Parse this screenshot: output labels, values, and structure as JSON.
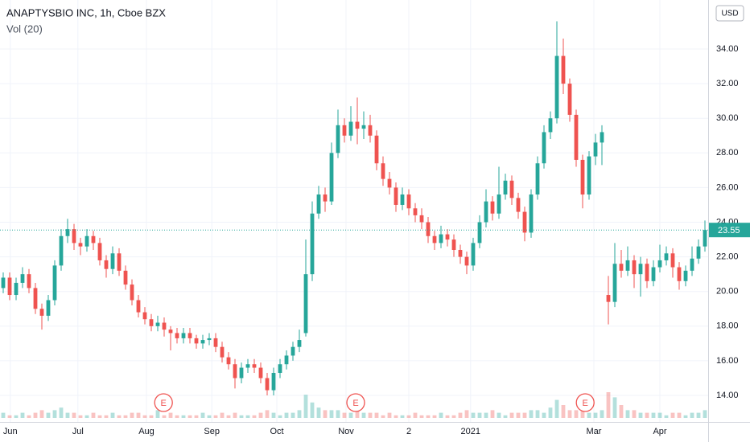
{
  "chart_data": {
    "type": "candlestick",
    "title": "ANAPTYSBIO INC, 1h, Cboe BZX",
    "indicator": "Vol (20)",
    "currency": "USD",
    "up_color": "#26a69a",
    "down_color": "#ef5350",
    "xlim": [
      0,
      110
    ],
    "xticks": [
      {
        "value": 1.6,
        "label": "Jun"
      },
      {
        "value": 12.1,
        "label": "Jul"
      },
      {
        "value": 22.75,
        "label": "Aug"
      },
      {
        "value": 32.9,
        "label": "Sep"
      },
      {
        "value": 43,
        "label": "Oct"
      },
      {
        "value": 53.75,
        "label": "Nov"
      },
      {
        "value": 63.5,
        "label": "2"
      },
      {
        "value": 73.1,
        "label": "2021"
      },
      {
        "value": 92.25,
        "label": "Mar"
      },
      {
        "value": 102.5,
        "label": "Apr"
      }
    ],
    "ylim": [
      12.47,
      36.83
    ],
    "yticks": [
      {
        "value": 14,
        "label": "14.00"
      },
      {
        "value": 16,
        "label": "16.00"
      },
      {
        "value": 18,
        "label": "18.00"
      },
      {
        "value": 20,
        "label": "20.00"
      },
      {
        "value": 22,
        "label": "22.00"
      },
      {
        "value": 24,
        "label": "24.00"
      },
      {
        "value": 26,
        "label": "26.00"
      },
      {
        "value": 28,
        "label": "28.00"
      },
      {
        "value": 30,
        "label": "30.00"
      },
      {
        "value": 32,
        "label": "32.00"
      },
      {
        "value": 34,
        "label": "34.00"
      }
    ],
    "grid": true,
    "last_price": {
      "value": 23.55,
      "label": "23.55"
    },
    "candles": [
      [
        20.2,
        21.1,
        19.9,
        20.8
      ],
      [
        20.8,
        21.1,
        19.5,
        19.8
      ],
      [
        19.8,
        20.8,
        19.5,
        20.5
      ],
      [
        20.5,
        21.4,
        20.2,
        21.0
      ],
      [
        21.0,
        21.3,
        19.9,
        20.2
      ],
      [
        20.2,
        20.5,
        18.7,
        19.0
      ],
      [
        19.0,
        19.3,
        17.8,
        18.6
      ],
      [
        18.6,
        19.8,
        18.3,
        19.5
      ],
      [
        19.5,
        21.8,
        19.2,
        21.5
      ],
      [
        21.5,
        23.6,
        21.2,
        23.2
      ],
      [
        23.2,
        24.2,
        22.8,
        23.6
      ],
      [
        23.6,
        23.9,
        22.4,
        22.8
      ],
      [
        22.8,
        23.1,
        22.1,
        22.6
      ],
      [
        22.6,
        23.6,
        22.3,
        23.2
      ],
      [
        23.2,
        23.5,
        22.4,
        22.8
      ],
      [
        22.8,
        23.1,
        21.5,
        21.8
      ],
      [
        21.8,
        22.1,
        20.8,
        21.3
      ],
      [
        21.3,
        22.6,
        21.0,
        22.2
      ],
      [
        22.2,
        22.5,
        20.9,
        21.2
      ],
      [
        21.2,
        21.5,
        20.1,
        20.4
      ],
      [
        20.4,
        20.7,
        19.2,
        19.5
      ],
      [
        19.5,
        19.8,
        18.5,
        18.8
      ],
      [
        18.8,
        19.1,
        18.1,
        18.4
      ],
      [
        18.4,
        18.7,
        17.7,
        18.0
      ],
      [
        18.0,
        18.6,
        17.7,
        18.2
      ],
      [
        18.2,
        18.5,
        17.4,
        17.8
      ],
      [
        17.8,
        18.0,
        16.6,
        17.6
      ],
      [
        17.6,
        17.9,
        17.0,
        17.3
      ],
      [
        17.3,
        17.9,
        17.0,
        17.6
      ],
      [
        17.6,
        17.9,
        17.0,
        17.3
      ],
      [
        17.3,
        17.5,
        16.7,
        17.0
      ],
      [
        17.0,
        17.5,
        16.7,
        17.2
      ],
      [
        17.2,
        17.6,
        16.9,
        17.3
      ],
      [
        17.3,
        17.6,
        16.5,
        16.8
      ],
      [
        16.8,
        17.1,
        15.9,
        16.2
      ],
      [
        16.2,
        16.5,
        15.5,
        15.8
      ],
      [
        15.8,
        16.1,
        14.4,
        15.0
      ],
      [
        15.0,
        15.9,
        14.7,
        15.6
      ],
      [
        15.6,
        16.1,
        15.3,
        15.8
      ],
      [
        15.8,
        16.1,
        15.3,
        15.6
      ],
      [
        15.6,
        15.9,
        14.7,
        15.0
      ],
      [
        15.0,
        15.3,
        14.0,
        14.3
      ],
      [
        14.3,
        15.6,
        14.0,
        15.3
      ],
      [
        15.3,
        16.1,
        15.0,
        15.8
      ],
      [
        15.8,
        16.6,
        15.5,
        16.3
      ],
      [
        16.3,
        17.1,
        16.0,
        16.8
      ],
      [
        16.8,
        17.8,
        16.5,
        17.2
      ],
      [
        17.6,
        23.0,
        17.4,
        21.0
      ],
      [
        21.0,
        25.2,
        20.6,
        24.5
      ],
      [
        24.5,
        26.1,
        24.2,
        25.6
      ],
      [
        25.6,
        26.0,
        24.6,
        25.2
      ],
      [
        25.2,
        28.6,
        25.0,
        28.0
      ],
      [
        28.0,
        30.5,
        27.7,
        29.6
      ],
      [
        29.6,
        30.0,
        28.6,
        29.0
      ],
      [
        29.0,
        30.7,
        28.7,
        29.8
      ],
      [
        29.8,
        31.2,
        28.5,
        29.4
      ],
      [
        29.4,
        30.4,
        28.8,
        29.6
      ],
      [
        29.6,
        30.2,
        28.6,
        29.0
      ],
      [
        29.0,
        29.3,
        27.0,
        27.4
      ],
      [
        27.4,
        27.8,
        26.1,
        26.5
      ],
      [
        26.5,
        26.9,
        25.6,
        26.0
      ],
      [
        26.0,
        26.3,
        24.6,
        25.0
      ],
      [
        25.0,
        26.0,
        24.7,
        25.6
      ],
      [
        25.6,
        25.9,
        24.4,
        24.8
      ],
      [
        24.8,
        25.1,
        24.0,
        24.4
      ],
      [
        24.4,
        24.8,
        23.6,
        24.0
      ],
      [
        24.0,
        24.3,
        22.8,
        23.2
      ],
      [
        23.2,
        23.5,
        22.4,
        22.8
      ],
      [
        22.8,
        23.8,
        22.5,
        23.3
      ],
      [
        23.3,
        23.6,
        22.6,
        23.0
      ],
      [
        23.0,
        23.3,
        22.0,
        22.4
      ],
      [
        22.4,
        22.7,
        21.6,
        22.0
      ],
      [
        22.0,
        22.3,
        21.0,
        21.5
      ],
      [
        21.5,
        23.1,
        21.2,
        22.8
      ],
      [
        22.8,
        24.4,
        22.5,
        24.0
      ],
      [
        24.0,
        25.9,
        23.7,
        25.2
      ],
      [
        25.2,
        25.5,
        24.1,
        24.5
      ],
      [
        24.5,
        27.2,
        24.2,
        25.6
      ],
      [
        25.6,
        26.8,
        25.3,
        26.4
      ],
      [
        26.4,
        26.7,
        25.0,
        25.4
      ],
      [
        25.4,
        25.7,
        24.2,
        24.6
      ],
      [
        24.6,
        24.9,
        22.9,
        23.4
      ],
      [
        23.4,
        25.9,
        23.1,
        25.6
      ],
      [
        25.6,
        27.8,
        25.3,
        27.4
      ],
      [
        27.4,
        29.6,
        27.1,
        29.2
      ],
      [
        29.2,
        30.4,
        28.8,
        30.0
      ],
      [
        30.0,
        35.6,
        29.7,
        33.6
      ],
      [
        33.6,
        34.6,
        31.4,
        32.0
      ],
      [
        32.0,
        32.3,
        29.8,
        30.2
      ],
      [
        30.2,
        30.5,
        27.2,
        27.6
      ],
      [
        27.6,
        27.9,
        24.8,
        25.6
      ],
      [
        25.6,
        28.1,
        25.3,
        27.8
      ],
      [
        27.8,
        29.1,
        27.3,
        28.6
      ],
      [
        28.6,
        29.6,
        27.3,
        29.2
      ],
      [
        19.8,
        20.9,
        18.1,
        19.4
      ],
      [
        19.4,
        22.8,
        19.1,
        21.6
      ],
      [
        21.6,
        22.4,
        20.8,
        21.2
      ],
      [
        21.2,
        22.6,
        20.9,
        21.8
      ],
      [
        21.8,
        22.1,
        20.2,
        21.0
      ],
      [
        21.0,
        22.0,
        19.7,
        21.6
      ],
      [
        21.6,
        21.9,
        20.2,
        20.6
      ],
      [
        20.6,
        21.8,
        20.3,
        21.4
      ],
      [
        21.4,
        22.7,
        21.1,
        21.8
      ],
      [
        21.8,
        22.6,
        21.5,
        22.2
      ],
      [
        22.2,
        22.5,
        20.8,
        21.4
      ],
      [
        21.4,
        21.7,
        20.1,
        20.6
      ],
      [
        20.6,
        21.5,
        20.3,
        21.2
      ],
      [
        21.2,
        22.6,
        20.9,
        21.9
      ],
      [
        21.9,
        23.0,
        21.6,
        22.6
      ],
      [
        22.6,
        24.1,
        22.3,
        23.55
      ]
    ],
    "volume": [
      2,
      1,
      1,
      2,
      1,
      2,
      3,
      2,
      3,
      4,
      2,
      2,
      1,
      1,
      2,
      1,
      1,
      2,
      1,
      1,
      2,
      2,
      1,
      1,
      3,
      1,
      2,
      1,
      1,
      1,
      1,
      2,
      1,
      1,
      2,
      1,
      2,
      1,
      1,
      1,
      2,
      3,
      2,
      1,
      2,
      2,
      3,
      9,
      6,
      4,
      3,
      3,
      3,
      2,
      2,
      4,
      2,
      2,
      2,
      1,
      2,
      1,
      1,
      1,
      2,
      1,
      1,
      1,
      2,
      1,
      1,
      2,
      3,
      2,
      2,
      2,
      3,
      2,
      1,
      2,
      2,
      2,
      3,
      3,
      2,
      4,
      7,
      5,
      3,
      3,
      3,
      2,
      2,
      3,
      10,
      8,
      5,
      3,
      3,
      2,
      2,
      2,
      2,
      1,
      2,
      2,
      1,
      2,
      2,
      3
    ],
    "events": [
      {
        "x": 25.4,
        "label": "E"
      },
      {
        "x": 55.25,
        "label": "E"
      },
      {
        "x": 90.9,
        "label": "E"
      }
    ]
  }
}
